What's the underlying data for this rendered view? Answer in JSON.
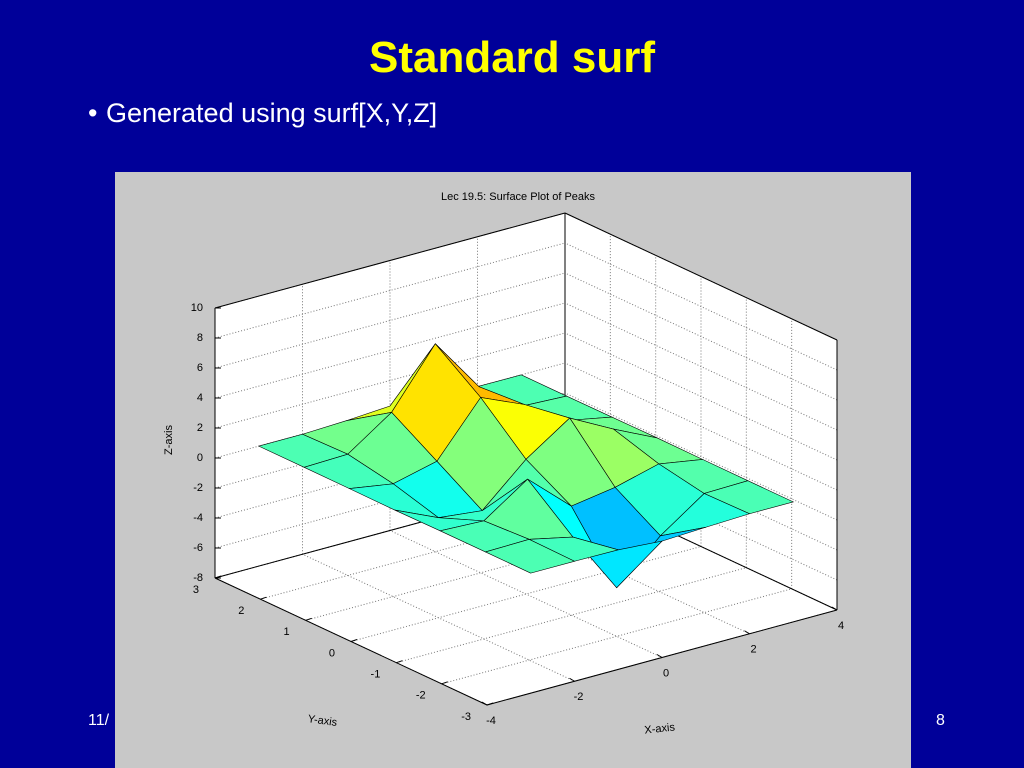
{
  "slide": {
    "title": "Standard surf",
    "bullets": [
      "Generated using surf[X,Y,Z]"
    ],
    "footer_left": "11/",
    "page_number": "8"
  },
  "chart_data": {
    "type": "surface",
    "title": "Lec 19.5: Surface Plot of Peaks",
    "x_label": "X-axis",
    "y_label": "Y-axis",
    "z_label": "Z-axis",
    "x": [
      -3,
      -2,
      -1,
      0,
      1,
      2,
      3
    ],
    "y": [
      -3,
      -2,
      -1,
      0,
      1,
      2,
      3
    ],
    "z": [
      [
        0,
        0,
        -0.03,
        -0.24,
        -0.11,
        0,
        0
      ],
      [
        0,
        0.05,
        -0.59,
        -4.76,
        -2.09,
        -0.06,
        0
      ],
      [
        0,
        -0.13,
        1.86,
        -0.73,
        -0.27,
        0.5,
        0.01
      ],
      [
        -0.03,
        -1.33,
        -1.65,
        0.98,
        2.94,
        1.41,
        0.03
      ],
      [
        -0.01,
        -0.48,
        0.23,
        3.69,
        2.43,
        0.58,
        0.01
      ],
      [
        0,
        0.08,
        2.08,
        5.86,
        2.2,
        0.13,
        0
      ],
      [
        0,
        0,
        0.11,
        0.3,
        0.11,
        0.01,
        0
      ]
    ],
    "xlim": [
      -4,
      4
    ],
    "ylim": [
      -3,
      3
    ],
    "zlim": [
      -8,
      10
    ],
    "xticks": [
      -4,
      -2,
      0,
      2,
      4
    ],
    "yticks": [
      -3,
      -2,
      -1,
      0,
      1,
      2,
      3
    ],
    "zticks": [
      -8,
      -6,
      -4,
      -2,
      0,
      2,
      4,
      6,
      8,
      10
    ],
    "clim": [
      -6.5,
      8
    ],
    "colormap": "jet",
    "grid": true
  }
}
